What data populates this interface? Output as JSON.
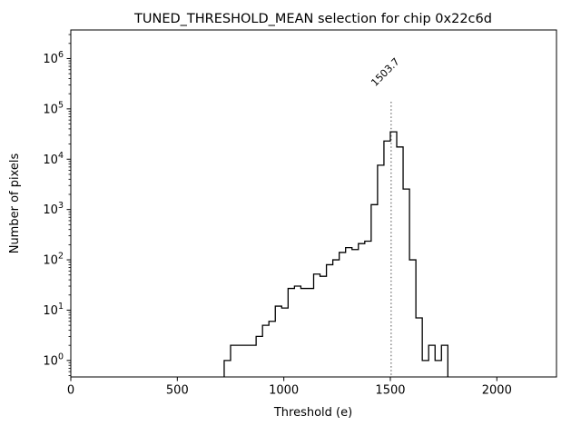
{
  "figure": {
    "title": "TUNED_THRESHOLD_MEAN selection for chip 0x22c6d",
    "xlabel": "Threshold (e)",
    "ylabel": "Number of pixels",
    "background_color": "#ffffff",
    "line_color": "#000000",
    "vline_color": "#7f7f7f",
    "annotation_color": "#9e9e9e"
  },
  "chart_data": {
    "type": "bar",
    "subtype": "step-histogram",
    "title": "TUNED_THRESHOLD_MEAN selection for chip 0x22c6d",
    "xlabel": "Threshold (e)",
    "ylabel": "Number of pixels",
    "yscale": "log",
    "grid": false,
    "legend": null,
    "bin_start": 720,
    "bin_width": 30,
    "bin_unit": "e",
    "counts": [
      1,
      2,
      2,
      2,
      2,
      3,
      5,
      6,
      12,
      11,
      27,
      30,
      27,
      27,
      52,
      47,
      80,
      100,
      140,
      175,
      160,
      210,
      235,
      1250,
      7600,
      23000,
      35000,
      17500,
      2550,
      100,
      7,
      1,
      2,
      1,
      2
    ],
    "peak_bin": [
      1500,
      1530
    ],
    "peak_count": 35000,
    "xlim": [
      0,
      2280
    ],
    "ylim": [
      0.47,
      3700000
    ],
    "x_ticks": [
      0,
      500,
      1000,
      1500,
      2000
    ],
    "y_tick_exponents": [
      0,
      1,
      2,
      3,
      4,
      5,
      6
    ],
    "vline": {
      "x": 1503.7,
      "label": "1503.7",
      "style": "dotted",
      "color": "#7f7f7f",
      "label_rotation_deg": 45
    }
  }
}
